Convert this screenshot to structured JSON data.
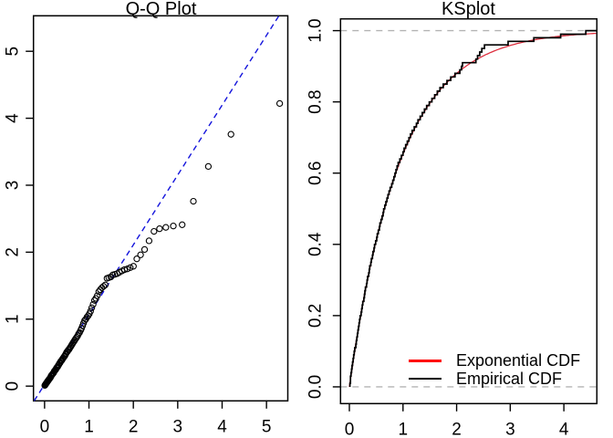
{
  "titles": {
    "left": "Q-Q Plot",
    "right": "KSplot"
  },
  "colors": {
    "qq_line_blue": "#1414dc",
    "ks_curve_red": "#dd2e3e",
    "legend_red": "#ff0000",
    "empirical_black": "#000000",
    "gray_dashed": "#b3b3b3",
    "axis_black": "#000000",
    "background": "#ffffff"
  },
  "legend": {
    "items": [
      {
        "label": "Exponential CDF",
        "color": "#ff0000",
        "thickness": 3
      },
      {
        "label": "Empirical CDF",
        "color": "#000000",
        "thickness": 2.5
      }
    ]
  },
  "chart_data": [
    {
      "type": "scatter",
      "title": "Q-Q Plot",
      "xlabel": "",
      "ylabel": "",
      "xlim": [
        -0.25,
        5.48
      ],
      "ylim": [
        -0.22,
        5.53
      ],
      "xticks": [
        0,
        1,
        2,
        3,
        4,
        5
      ],
      "xtick_labels": [
        "0",
        "1",
        "2",
        "3",
        "4",
        "5"
      ],
      "yticks": [
        0,
        1,
        2,
        3,
        4,
        5
      ],
      "ytick_labels": [
        "0",
        "1",
        "2",
        "3",
        "4",
        "5"
      ],
      "grid": false,
      "marker": "open-circle",
      "theoretical_quantiles": [
        0.005,
        0.015,
        0.025,
        0.036,
        0.046,
        0.057,
        0.067,
        0.078,
        0.089,
        0.1,
        0.111,
        0.122,
        0.134,
        0.145,
        0.157,
        0.168,
        0.18,
        0.192,
        0.205,
        0.217,
        0.229,
        0.242,
        0.255,
        0.268,
        0.281,
        0.294,
        0.308,
        0.322,
        0.336,
        0.35,
        0.364,
        0.378,
        0.393,
        0.408,
        0.423,
        0.439,
        0.454,
        0.47,
        0.486,
        0.503,
        0.519,
        0.536,
        0.553,
        0.571,
        0.589,
        0.607,
        0.626,
        0.644,
        0.664,
        0.683,
        0.703,
        0.724,
        0.744,
        0.766,
        0.787,
        0.81,
        0.832,
        0.856,
        0.879,
        0.904,
        0.929,
        0.955,
        0.981,
        1.008,
        1.036,
        1.064,
        1.094,
        1.124,
        1.155,
        1.187,
        1.221,
        1.255,
        1.291,
        1.328,
        1.367,
        1.407,
        1.448,
        1.492,
        1.537,
        1.585,
        1.635,
        1.687,
        1.743,
        1.802,
        1.864,
        1.931,
        2.002,
        2.079,
        2.163,
        2.254,
        2.354,
        2.465,
        2.59,
        2.733,
        2.9,
        3.101,
        3.352,
        3.689,
        4.2,
        5.298
      ],
      "sample_quantiles": [
        0.01,
        0.02,
        0.03,
        0.04,
        0.05,
        0.06,
        0.07,
        0.08,
        0.09,
        0.1,
        0.11,
        0.12,
        0.13,
        0.15,
        0.16,
        0.17,
        0.18,
        0.19,
        0.2,
        0.22,
        0.23,
        0.24,
        0.25,
        0.27,
        0.28,
        0.29,
        0.31,
        0.32,
        0.34,
        0.35,
        0.37,
        0.38,
        0.39,
        0.41,
        0.42,
        0.44,
        0.45,
        0.47,
        0.49,
        0.51,
        0.52,
        0.54,
        0.55,
        0.57,
        0.59,
        0.61,
        0.63,
        0.65,
        0.67,
        0.69,
        0.71,
        0.73,
        0.75,
        0.78,
        0.8,
        0.83,
        0.86,
        0.9,
        0.94,
        0.98,
        1.0,
        1.03,
        1.05,
        1.08,
        1.12,
        1.17,
        1.22,
        1.28,
        1.31,
        1.35,
        1.41,
        1.44,
        1.47,
        1.49,
        1.51,
        1.61,
        1.62,
        1.63,
        1.66,
        1.67,
        1.68,
        1.7,
        1.72,
        1.74,
        1.75,
        1.77,
        1.79,
        1.9,
        1.96,
        2.04,
        2.17,
        2.31,
        2.35,
        2.37,
        2.39,
        2.41,
        2.76,
        3.28,
        3.76,
        4.22
      ],
      "reference_line": {
        "style": "dashed",
        "color": "blue",
        "x1": -0.235,
        "y1": -0.22,
        "x2": 5.28,
        "y2": 5.53
      }
    },
    {
      "type": "line",
      "title": "KSplot",
      "xlabel": "",
      "ylabel": "",
      "xlim": [
        -0.165,
        4.615
      ],
      "ylim": [
        -0.047,
        1.033
      ],
      "xticks": [
        0,
        1,
        2,
        3,
        4
      ],
      "xtick_labels": [
        "0",
        "1",
        "2",
        "3",
        "4"
      ],
      "yticks": [
        0,
        0.2,
        0.4,
        0.6,
        0.8,
        1.0
      ],
      "ytick_labels": [
        "0.0",
        "0.2",
        "0.4",
        "0.6",
        "0.8",
        "1.0"
      ],
      "grid": false,
      "hlines_dashed": [
        0,
        1
      ],
      "exponential_cdf": {
        "formula": "1-exp(-rate*x)",
        "rate": 1.06,
        "x_from": 0,
        "x_to": 4.615
      },
      "empirical_sample": [
        0.01,
        0.02,
        0.02,
        0.03,
        0.04,
        0.05,
        0.06,
        0.07,
        0.08,
        0.09,
        0.1,
        0.12,
        0.13,
        0.14,
        0.15,
        0.16,
        0.17,
        0.18,
        0.19,
        0.2,
        0.22,
        0.23,
        0.24,
        0.25,
        0.27,
        0.28,
        0.29,
        0.3,
        0.32,
        0.33,
        0.34,
        0.36,
        0.37,
        0.38,
        0.4,
        0.41,
        0.43,
        0.44,
        0.46,
        0.47,
        0.49,
        0.51,
        0.52,
        0.54,
        0.56,
        0.57,
        0.59,
        0.61,
        0.63,
        0.64,
        0.66,
        0.68,
        0.7,
        0.72,
        0.74,
        0.76,
        0.79,
        0.81,
        0.83,
        0.85,
        0.87,
        0.89,
        0.91,
        0.94,
        0.97,
        1.0,
        1.02,
        1.05,
        1.08,
        1.11,
        1.14,
        1.17,
        1.21,
        1.25,
        1.28,
        1.32,
        1.36,
        1.4,
        1.44,
        1.49,
        1.54,
        1.59,
        1.64,
        1.69,
        1.75,
        1.82,
        1.89,
        1.97,
        2.06,
        2.09,
        2.11,
        2.36,
        2.39,
        2.43,
        2.47,
        2.52,
        2.96,
        3.44,
        3.94,
        4.41
      ],
      "legend_position": "bottomright"
    }
  ]
}
